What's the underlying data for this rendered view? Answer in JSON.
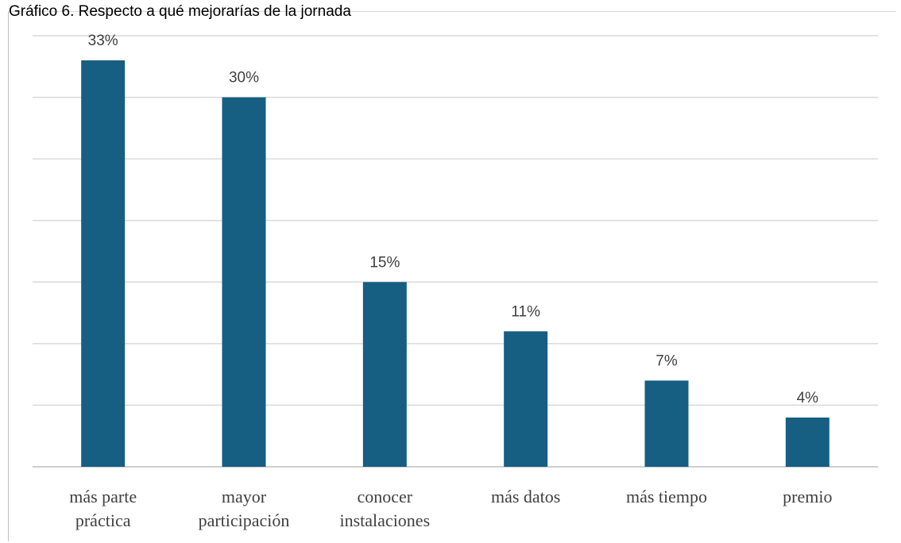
{
  "title": "Gráfico 6. Respecto a qué mejorarías de la jornada",
  "colors": {
    "bar": "#165e82",
    "gridline": "#d9d9d9",
    "axis": "#bfbfbf",
    "text": "#404040"
  },
  "chart_data": {
    "type": "bar",
    "title": "Gráfico 6. Respecto a qué mejorarías de la jornada",
    "categories": [
      [
        "más parte",
        "práctica"
      ],
      [
        "mayor",
        "participación"
      ],
      [
        "conocer",
        "instalaciones"
      ],
      [
        "más datos"
      ],
      [
        "más tiempo"
      ],
      [
        "premio"
      ]
    ],
    "values": [
      33,
      30,
      15,
      11,
      7,
      4
    ],
    "value_labels": [
      "33%",
      "30%",
      "15%",
      "11%",
      "7%",
      "4%"
    ],
    "unit": "%",
    "ylim": [
      0,
      35
    ],
    "grid": true,
    "legend": "none"
  }
}
